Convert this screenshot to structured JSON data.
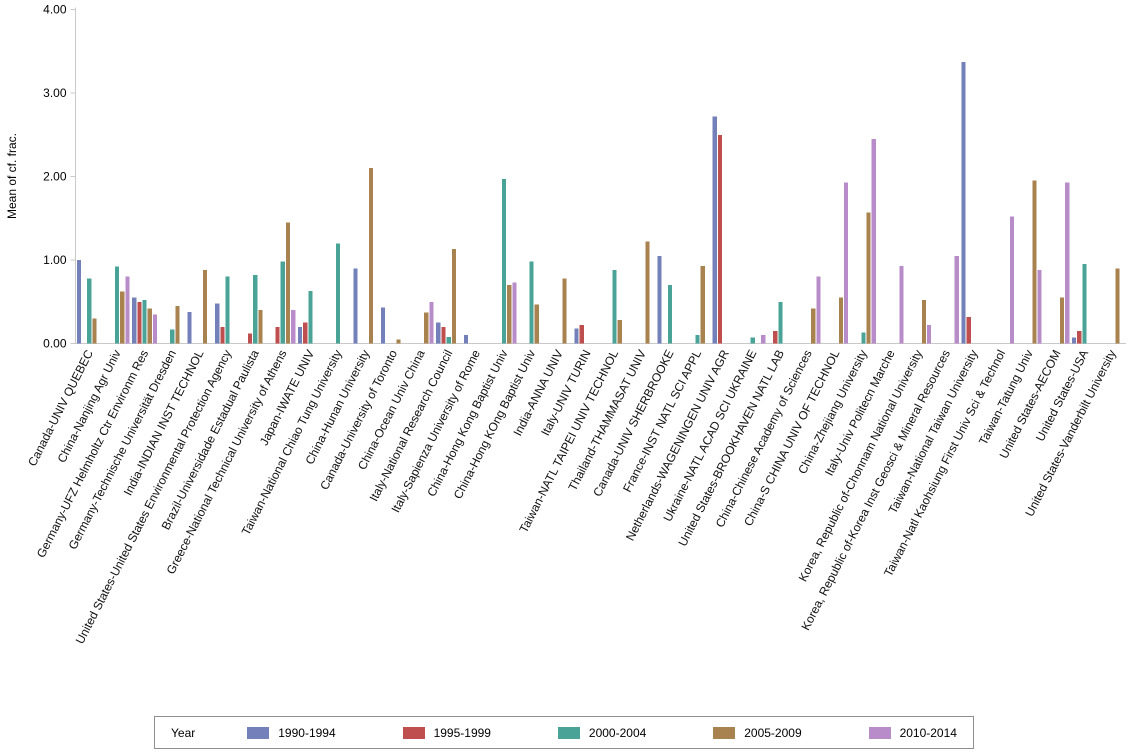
{
  "chart_data": {
    "type": "bar",
    "title": "",
    "ylabel": "Mean of cf. frac.",
    "xlabel": "",
    "ylim": [
      0,
      4
    ],
    "yticks": [
      0,
      1,
      2,
      3,
      4
    ],
    "ytick_labels": [
      "0.00",
      "1.00",
      "2.00",
      "3.00",
      "4.00"
    ],
    "grid": false,
    "legend_title": "Year",
    "legend_position": "bottom",
    "categories": [
      "Canada-UNIV QUEBEC",
      "China-Nanjing Agr Univ",
      "Germany-UFZ Helmholtz Ctr Environm Res",
      "Germany-Technische Universität Dresden",
      "India-INDIAN INST TECHNOL",
      "United States-United States Environmental Protection Agency",
      "Brazil-Universidade Estadual Paulista",
      "Greece-National Technical University of Athens",
      "Japan-IWATE UNIV",
      "Taiwan-National Chiao Tung University",
      "China-Hunan University",
      "Canada-University of Toronto",
      "China-Ocean Univ China",
      "Italy-National Research Council",
      "Italy-Sapienza University of Rome",
      "China-Hong Kong Baptist Univ",
      "China-Hong KOng Baptist Univ",
      "India-ANNA UNIV",
      "Italy-UNIV TURIN",
      "Taiwan-NATL TAIPEI UNIV TECHNOL",
      "Thailand-THAMMASAT UNIV",
      "Canada-UNIV SHERBROOKE",
      "France-INST NATL SCI APPL",
      "Netherlands-WAGENINGEN UNIV AGR",
      "Ukraine-NATL ACAD SCI UKRAINE",
      "United States-BROOKHAVEN NATL LAB",
      "China-Chinese Academy of Sciences",
      "China-S CHINA UNIV OF TECHNOL",
      "China-Zhejiang University",
      "Italy-Univ Politecn Marche",
      "Korea, Republic of-Chonnam National University",
      "Korea, Republic of-Korea Inst Geosci & Mineral Resources",
      "Taiwan-National Taiwan University",
      "Taiwan-Natl Kaohsiung First Univ Sci & Technol",
      "Taiwan-Tatung Univ",
      "United States-AECOM",
      "United States-USA",
      "United States-Vanderbilt University"
    ],
    "series": [
      {
        "name": "1990-1994",
        "color": "#7380b9",
        "values": [
          1.0,
          0,
          0.55,
          0,
          0.38,
          0.48,
          0,
          0,
          0.2,
          0,
          0.9,
          0.43,
          0,
          0.25,
          0.1,
          0,
          0,
          0,
          0.18,
          0,
          0,
          1.05,
          0,
          2.72,
          0,
          0,
          0,
          0,
          0,
          0,
          0,
          0,
          3.37,
          0,
          0,
          0,
          0.07,
          0
        ]
      },
      {
        "name": "1995-1999",
        "color": "#bf4e4e",
        "values": [
          0,
          0,
          0.5,
          0,
          0,
          0.2,
          0.12,
          0.2,
          0.25,
          0,
          0,
          0,
          0,
          0.2,
          0,
          0,
          0,
          0,
          0.22,
          0,
          0,
          0,
          0,
          2.5,
          0,
          0.15,
          0,
          0,
          0,
          0,
          0,
          0,
          0.32,
          0,
          0,
          0,
          0.15,
          0
        ]
      },
      {
        "name": "2000-2004",
        "color": "#4aa397",
        "values": [
          0.78,
          0.92,
          0.52,
          0.17,
          0,
          0.8,
          0.82,
          0.98,
          0.63,
          1.2,
          0,
          0,
          0,
          0.08,
          0,
          1.97,
          0.98,
          0,
          0,
          0.88,
          0,
          0.7,
          0.1,
          0,
          0.07,
          0.5,
          0,
          0,
          0.13,
          0,
          0,
          0,
          0,
          0,
          0,
          0,
          0.95,
          0
        ]
      },
      {
        "name": "2005-2009",
        "color": "#a8824f",
        "values": [
          0.3,
          0.62,
          0.42,
          0.45,
          0.88,
          0,
          0.4,
          1.45,
          0,
          0,
          2.1,
          0.05,
          0.37,
          1.13,
          0,
          0.7,
          0.47,
          0.78,
          0,
          0.28,
          1.22,
          0,
          0.93,
          0,
          0,
          0,
          0.42,
          0.55,
          1.57,
          0,
          0.52,
          0,
          0,
          0,
          1.95,
          0.55,
          0,
          0.9
        ]
      },
      {
        "name": "2010-2014",
        "color": "#b78cc8",
        "values": [
          0,
          0.8,
          0.35,
          0,
          0,
          0,
          0,
          0.4,
          0,
          0,
          0,
          0,
          0.5,
          0,
          0,
          0.73,
          0,
          0,
          0,
          0,
          0,
          0,
          0,
          0,
          0.1,
          0,
          0.8,
          1.93,
          2.45,
          0.93,
          0.22,
          1.05,
          0,
          1.52,
          0.88,
          1.93,
          0,
          0
        ]
      }
    ]
  }
}
